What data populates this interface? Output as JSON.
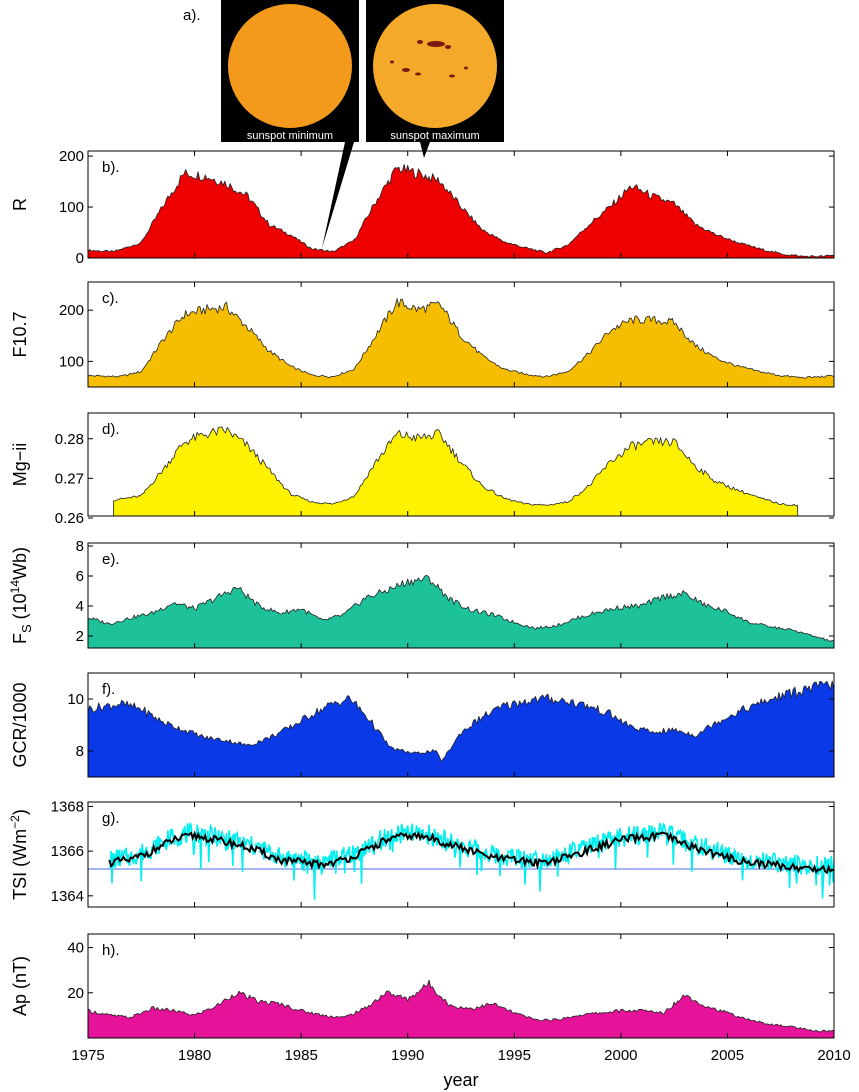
{
  "figure": {
    "panel_a_label": "a).",
    "sun_min_label": "sunspot minimum",
    "sun_max_label": "sunspot maximum",
    "xlabel": "year",
    "x_ticks": [
      "1975",
      "1980",
      "1985",
      "1990",
      "1995",
      "2000",
      "2005",
      "2010"
    ]
  },
  "chart_data": [
    {
      "id": "R",
      "type": "area",
      "panel_label": "b).",
      "ylabel": "R",
      "ylim": [
        0,
        210
      ],
      "yticks": [
        "0",
        "100",
        "200"
      ],
      "color": "#ee0000",
      "x": [
        1975,
        1976.2,
        1977.5,
        1978.5,
        1979.5,
        1980.5,
        1981.5,
        1982.5,
        1983.5,
        1984.5,
        1985.5,
        1986.5,
        1987.5,
        1988.5,
        1989.5,
        1990.5,
        1991.5,
        1992.5,
        1993.5,
        1994.5,
        1995.5,
        1996.5,
        1997.5,
        1998.5,
        1999.5,
        2000.5,
        2001.5,
        2002.5,
        2003.5,
        2004.5,
        2005.5,
        2006.5,
        2007.5,
        2008.5,
        2009.5,
        2010
      ],
      "y": [
        15,
        12,
        30,
        100,
        165,
        160,
        145,
        120,
        65,
        45,
        18,
        12,
        35,
        110,
        175,
        165,
        150,
        100,
        55,
        32,
        20,
        10,
        25,
        65,
        100,
        140,
        120,
        105,
        65,
        45,
        30,
        18,
        8,
        3,
        3,
        5
      ]
    },
    {
      "id": "F107",
      "type": "area",
      "panel_label": "c).",
      "ylabel": "F10.7",
      "ylim": [
        50,
        255
      ],
      "yticks": [
        "100",
        "200"
      ],
      "color": "#f5be00",
      "x": [
        1975,
        1976.5,
        1977.5,
        1978.5,
        1979.5,
        1980.5,
        1981.5,
        1982.5,
        1983.5,
        1984.5,
        1985.5,
        1986.5,
        1987.5,
        1988.5,
        1989.5,
        1990.5,
        1991.5,
        1992.5,
        1993.5,
        1994.5,
        1995.5,
        1996.5,
        1997.5,
        1998.5,
        1999.5,
        2000.5,
        2001.5,
        2002.5,
        2003.5,
        2004.5,
        2005.5,
        2006.5,
        2007.5,
        2008.5,
        2009.5,
        2010
      ],
      "y": [
        72,
        70,
        80,
        140,
        190,
        200,
        205,
        165,
        120,
        90,
        73,
        70,
        85,
        150,
        215,
        200,
        210,
        150,
        110,
        85,
        75,
        70,
        80,
        115,
        160,
        180,
        180,
        175,
        130,
        105,
        90,
        80,
        72,
        68,
        70,
        72
      ]
    },
    {
      "id": "MgII",
      "type": "area",
      "panel_label": "d).",
      "ylabel": "Mg−ii",
      "ylim": [
        0.2605,
        0.2865
      ],
      "yticks": [
        "0.26",
        "0.27",
        "0.28"
      ],
      "color": "#fff200",
      "x": [
        1976.2,
        1977.5,
        1978.5,
        1979.5,
        1980.5,
        1981.5,
        1982.5,
        1983.5,
        1984.5,
        1985.5,
        1986.5,
        1987.5,
        1988.5,
        1989.5,
        1990.5,
        1991.5,
        1992.5,
        1993.5,
        1994.5,
        1995.5,
        1996.5,
        1997.5,
        1998.5,
        1999.5,
        2000.5,
        2001.5,
        2002.5,
        2003.5,
        2004.5,
        2005.5,
        2006.5,
        2007.5,
        2008.3
      ],
      "y": [
        0.2645,
        0.2655,
        0.272,
        0.279,
        0.281,
        0.282,
        0.278,
        0.272,
        0.266,
        0.264,
        0.2635,
        0.2655,
        0.274,
        0.281,
        0.28,
        0.281,
        0.274,
        0.268,
        0.265,
        0.2635,
        0.2632,
        0.264,
        0.268,
        0.274,
        0.278,
        0.279,
        0.279,
        0.273,
        0.269,
        0.267,
        0.265,
        0.2635,
        0.2632
      ]
    },
    {
      "id": "Fs",
      "type": "area",
      "panel_label": "e).",
      "ylabel": "F",
      "ylabel_sub": "S",
      "ylabel_unit_pre": " (10",
      "ylabel_unit_sup": "14",
      "ylabel_unit_post": "Wb)",
      "ylim": [
        1.2,
        8.2
      ],
      "yticks": [
        "2",
        "4",
        "6",
        "8"
      ],
      "color": "#1dc19a",
      "x": [
        1975,
        1976,
        1977,
        1978,
        1979,
        1980,
        1981,
        1982,
        1983,
        1984,
        1985,
        1986,
        1987,
        1988,
        1989,
        1990,
        1991,
        1992,
        1993,
        1994,
        1995,
        1996,
        1997,
        1998,
        1999,
        2000,
        2001,
        2002,
        2003,
        2004,
        2005,
        2006,
        2007,
        2008,
        2009,
        2010
      ],
      "y": [
        3.2,
        2.8,
        3.2,
        3.5,
        4.2,
        3.8,
        4.5,
        5.2,
        4.0,
        3.5,
        3.8,
        3.0,
        3.4,
        4.5,
        5.0,
        5.6,
        5.8,
        4.4,
        3.7,
        3.4,
        2.9,
        2.5,
        2.7,
        3.2,
        3.6,
        3.9,
        4.0,
        4.6,
        4.8,
        4.0,
        3.6,
        2.9,
        2.6,
        2.4,
        2.0,
        1.6
      ]
    },
    {
      "id": "GCR",
      "type": "area",
      "panel_label": "f).",
      "ylabel": "GCR/1000",
      "ylim": [
        7.0,
        11.0
      ],
      "yticks": [
        "8",
        "10"
      ],
      "color": "#0a3ae8",
      "x": [
        1975,
        1976.5,
        1977.5,
        1978.5,
        1979.5,
        1980.5,
        1981.5,
        1982.5,
        1983.5,
        1984.5,
        1985.5,
        1986.5,
        1987.3,
        1988.2,
        1989.2,
        1990.3,
        1991.3,
        1991.6,
        1992.5,
        1993.5,
        1994.5,
        1995.5,
        1996.5,
        1997.5,
        1998.5,
        1999.5,
        2000.5,
        2001.5,
        2002.5,
        2003.5,
        2004.5,
        2005.5,
        2006.5,
        2007.5,
        2008.5,
        2009.5,
        2010
      ],
      "y": [
        9.6,
        9.8,
        9.6,
        9.1,
        8.8,
        8.5,
        8.4,
        8.2,
        8.5,
        8.9,
        9.4,
        9.8,
        10.0,
        9.2,
        8.1,
        7.9,
        8.0,
        7.6,
        8.7,
        9.3,
        9.7,
        9.9,
        10.0,
        9.9,
        9.7,
        9.4,
        8.9,
        8.7,
        8.8,
        8.6,
        9.1,
        9.5,
        9.8,
        10.1,
        10.3,
        10.5,
        10.5
      ]
    },
    {
      "id": "TSI",
      "type": "line",
      "panel_label": "g).",
      "ylabel": "TSI (Wm",
      "ylabel_sup": "−2",
      "ylabel_post": ")",
      "ylim": [
        1363.5,
        1368.2
      ],
      "yticks": [
        "1364",
        "1366",
        "1368"
      ],
      "baseline_value": 1365.2,
      "baseline_color": "#4a6ee8",
      "daily_color": "#00f0f0",
      "smooth_color": "#000000",
      "x": [
        1976,
        1977,
        1978,
        1979,
        1980,
        1981,
        1982,
        1983,
        1984,
        1985,
        1986,
        1987,
        1988,
        1989,
        1990,
        1991,
        1992,
        1993,
        1994,
        1995,
        1996,
        1997,
        1998,
        1999,
        2000,
        2001,
        2002,
        2003,
        2004,
        2005,
        2006,
        2007,
        2008,
        2009,
        2010
      ],
      "y": [
        1365.5,
        1365.6,
        1366.0,
        1366.5,
        1366.7,
        1366.5,
        1366.3,
        1366.0,
        1365.6,
        1365.5,
        1365.4,
        1365.6,
        1366.0,
        1366.5,
        1366.7,
        1366.6,
        1366.3,
        1366.0,
        1365.7,
        1365.6,
        1365.5,
        1365.6,
        1365.9,
        1366.2,
        1366.5,
        1366.6,
        1366.7,
        1366.3,
        1366.0,
        1365.7,
        1365.5,
        1365.4,
        1365.3,
        1365.2,
        1365.2
      ]
    },
    {
      "id": "Ap",
      "type": "area",
      "panel_label": "h).",
      "ylabel": "Ap (nT)",
      "ylim": [
        0,
        46
      ],
      "yticks": [
        "20",
        "40"
      ],
      "color": "#e5129a",
      "x": [
        1975,
        1976,
        1977,
        1978,
        1979,
        1980,
        1981,
        1982,
        1983,
        1984,
        1985,
        1986,
        1987,
        1988,
        1989,
        1990,
        1991,
        1992,
        1993,
        1994,
        1995,
        1996,
        1997,
        1998,
        1999,
        2000,
        2001,
        2002,
        2003,
        2004,
        2005,
        2006,
        2007,
        2008,
        2009,
        2010
      ],
      "y": [
        12,
        10,
        9,
        13,
        12,
        10,
        14,
        20,
        16,
        15,
        12,
        10,
        9,
        13,
        20,
        17,
        24,
        14,
        13,
        15,
        11,
        8,
        8,
        10,
        11,
        12,
        12,
        11,
        19,
        14,
        11,
        8,
        6,
        5,
        3,
        3
      ]
    }
  ]
}
